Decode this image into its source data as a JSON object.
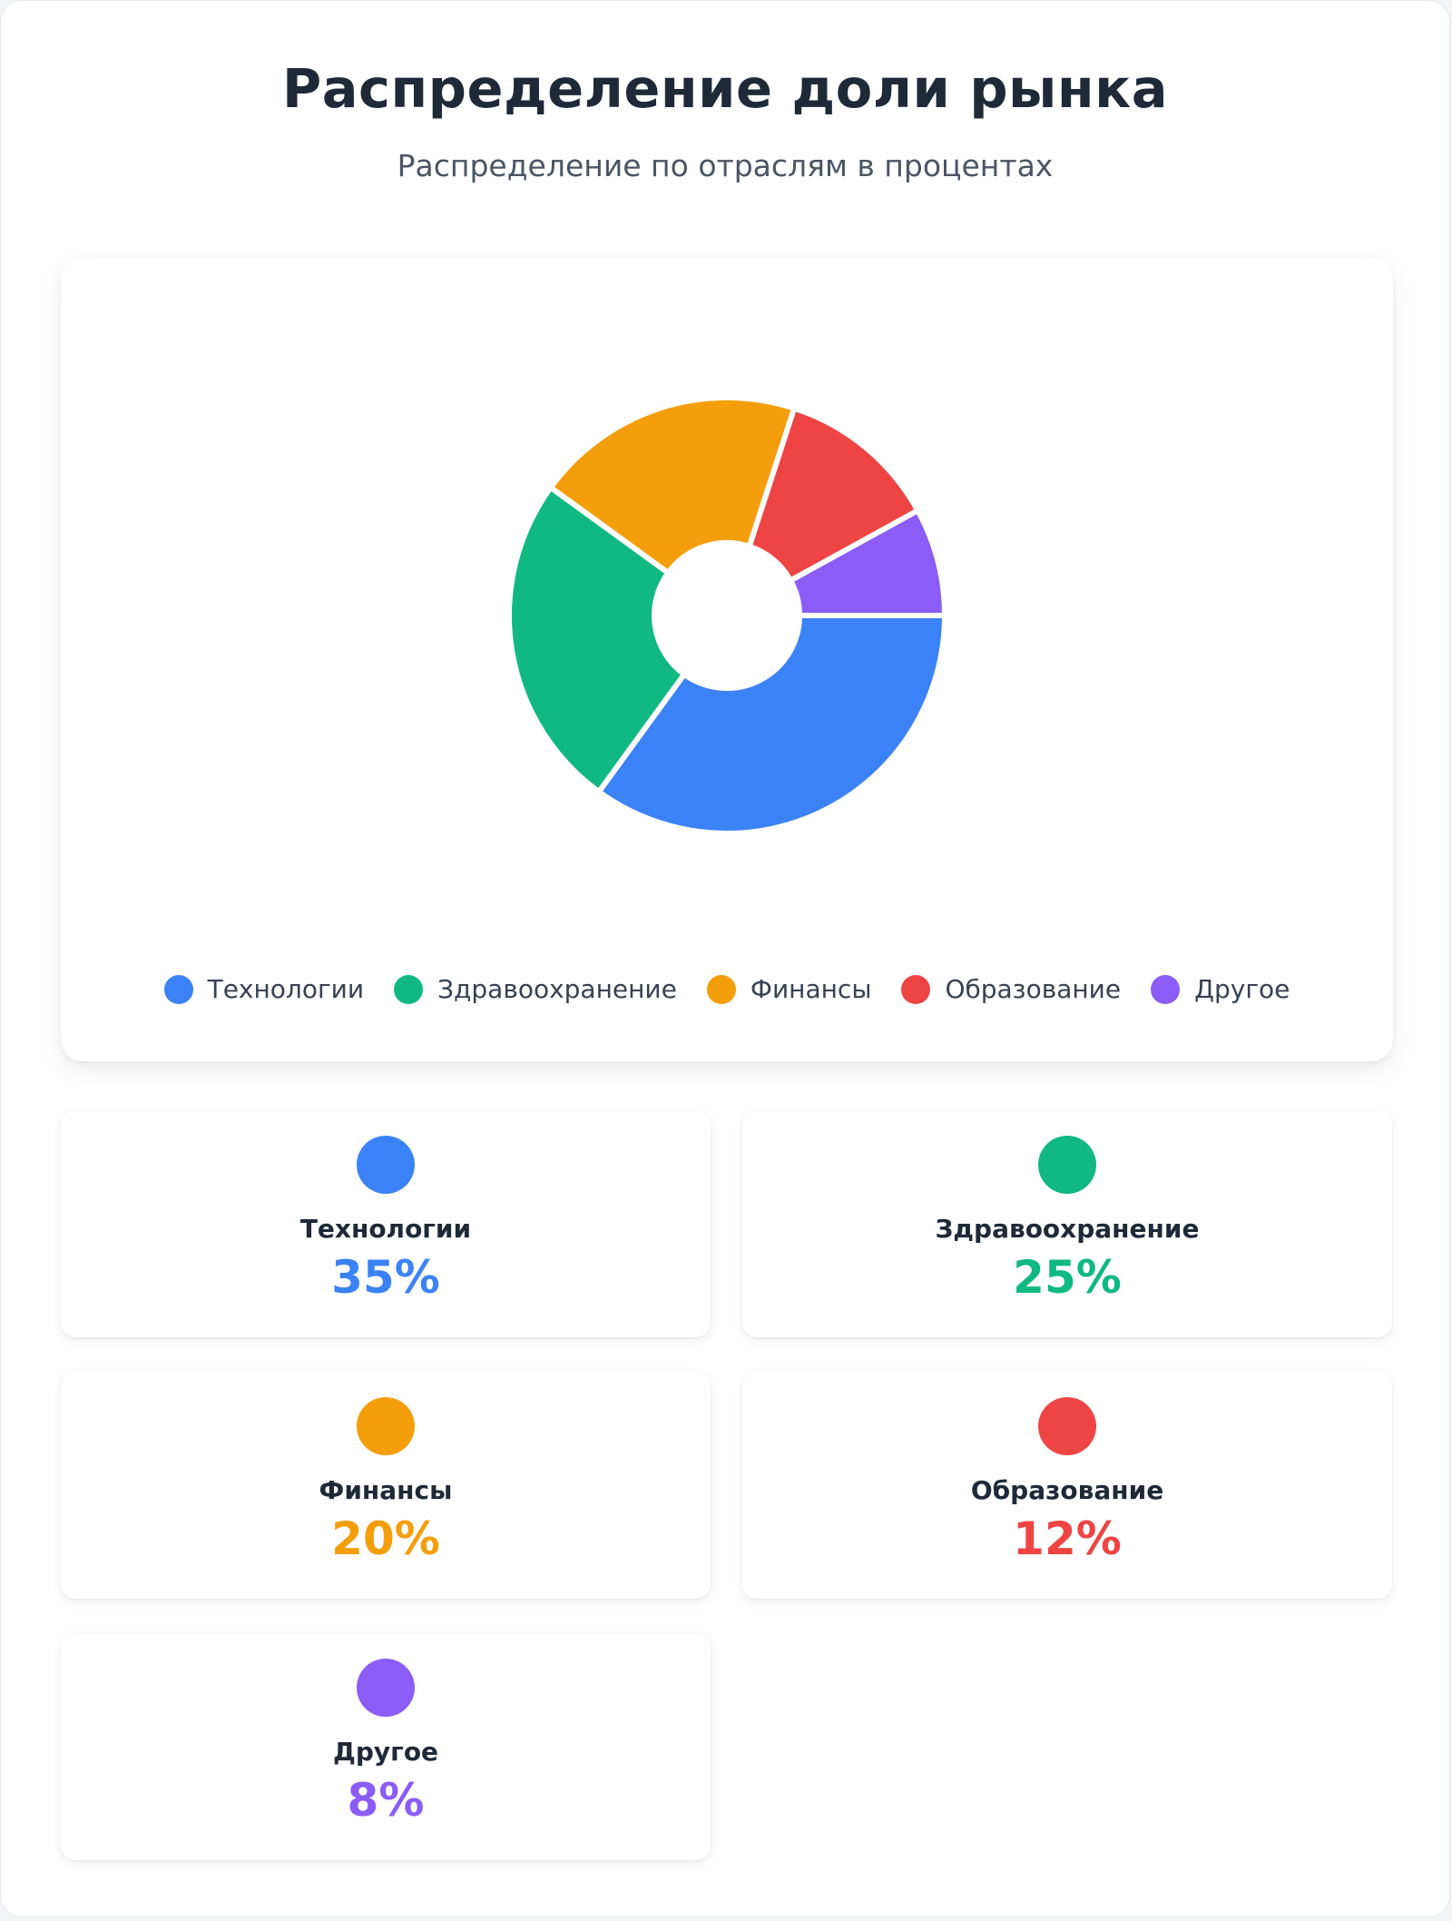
{
  "header": {
    "title": "Распределение доли рынка",
    "subtitle": "Распределение по отраслям в процентах"
  },
  "chart_data": {
    "type": "pie",
    "donut": true,
    "categories": [
      "Технологии",
      "Здравоохранение",
      "Финансы",
      "Образование",
      "Другое"
    ],
    "values": [
      35,
      25,
      20,
      12,
      8
    ],
    "unit": "%",
    "colors": [
      "#3b82f6",
      "#10b981",
      "#f59e0b",
      "#ef4444",
      "#8b5cf6"
    ],
    "legend_position": "bottom",
    "title": "Распределение доли рынка",
    "subtitle": "Распределение по отраслям в процентах"
  },
  "legend": {
    "items": [
      {
        "label": "Технологии",
        "color": "#3b82f6"
      },
      {
        "label": "Здравоохранение",
        "color": "#10b981"
      },
      {
        "label": "Финансы",
        "color": "#f59e0b"
      },
      {
        "label": "Образование",
        "color": "#ef4444"
      },
      {
        "label": "Другое",
        "color": "#8b5cf6"
      }
    ]
  },
  "cards": [
    {
      "name": "Технологии",
      "value": "35%",
      "color": "#3b82f6"
    },
    {
      "name": "Здравоохранение",
      "value": "25%",
      "color": "#10b981"
    },
    {
      "name": "Финансы",
      "value": "20%",
      "color": "#f59e0b"
    },
    {
      "name": "Образование",
      "value": "12%",
      "color": "#ef4444"
    },
    {
      "name": "Другое",
      "value": "8%",
      "color": "#8b5cf6"
    }
  ]
}
